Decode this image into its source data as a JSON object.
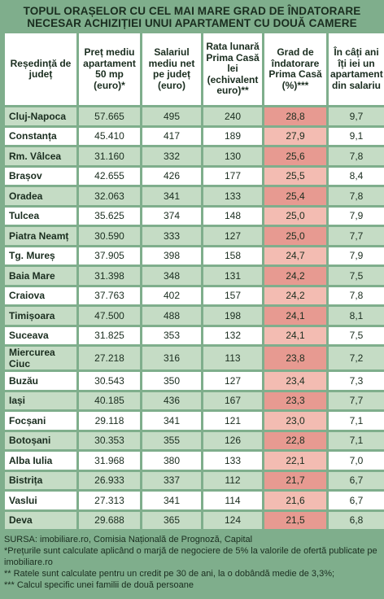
{
  "title_line1": "TOPUL ORAȘELOR CU CEL MAI MARE GRAD DE ÎNDATORARE",
  "title_line2": "NECESAR ACHIZIȚIEI UNUI APARTAMENT CU DOUĂ CAMERE",
  "chart_data": {
    "type": "table",
    "columns": [
      "Reședință de județ",
      "Preț mediu apartament 50 mp (euro)*",
      "Salariul mediu net pe județ (euro)",
      "Rata lunară Prima Casă lei (echivalent euro)**",
      "Grad de îndatorare Prima Casă (%)***",
      "În câți ani îți iei un apartament din salariu"
    ],
    "rows": [
      [
        "Cluj-Napoca",
        "57.665",
        "495",
        "240",
        "28,8",
        "9,7"
      ],
      [
        "Constanța",
        "45.410",
        "417",
        "189",
        "27,9",
        "9,1"
      ],
      [
        "Rm. Vâlcea",
        "31.160",
        "332",
        "130",
        "25,6",
        "7,8"
      ],
      [
        "Brașov",
        "42.655",
        "426",
        "177",
        "25,5",
        "8,4"
      ],
      [
        "Oradea",
        "32.063",
        "341",
        "133",
        "25,4",
        "7,8"
      ],
      [
        "Tulcea",
        "35.625",
        "374",
        "148",
        "25,0",
        "7,9"
      ],
      [
        "Piatra Neamț",
        "30.590",
        "333",
        "127",
        "25,0",
        "7,7"
      ],
      [
        "Tg. Mureș",
        "37.905",
        "398",
        "158",
        "24,7",
        "7,9"
      ],
      [
        "Baia Mare",
        "31.398",
        "348",
        "131",
        "24,2",
        "7,5"
      ],
      [
        "Craiova",
        "37.763",
        "402",
        "157",
        "24,2",
        "7,8"
      ],
      [
        "Timișoara",
        "47.500",
        "488",
        "198",
        "24,1",
        "8,1"
      ],
      [
        "Suceava",
        "31.825",
        "353",
        "132",
        "24,1",
        "7,5"
      ],
      [
        "Miercurea Ciuc",
        "27.218",
        "316",
        "113",
        "23,8",
        "7,2"
      ],
      [
        "Buzău",
        "30.543",
        "350",
        "127",
        "23,4",
        "7,3"
      ],
      [
        "Iași",
        "40.185",
        "436",
        "167",
        "23,3",
        "7,7"
      ],
      [
        "Focșani",
        "29.118",
        "341",
        "121",
        "23,0",
        "7,1"
      ],
      [
        "Botoșani",
        "30.353",
        "355",
        "126",
        "22,8",
        "7,1"
      ],
      [
        "Alba Iulia",
        "31.968",
        "380",
        "133",
        "22,1",
        "7,0"
      ],
      [
        "Bistrița",
        "26.933",
        "337",
        "112",
        "21,7",
        "6,7"
      ],
      [
        "Vaslui",
        "27.313",
        "341",
        "114",
        "21,6",
        "6,7"
      ],
      [
        "Deva",
        "29.688",
        "365",
        "124",
        "21,5",
        "6,8"
      ]
    ]
  },
  "notes": [
    "SURSA: imobiliare.ro, Comisia Națională de Prognoză, Capital",
    "*Prețurile sunt calculate aplicând o marjă de negociere de 5% la valorile de ofertă publicate pe imobiliare.ro",
    "** Ratele sunt calculate pentru un credit pe 30 de ani, la o dobândă medie de 3,3%;",
    "*** Calcul specific unei familii de două persoane"
  ],
  "colors": {
    "background": "#7fae8c",
    "row_alt": "#c5dcc5",
    "grade_light": "#f3bcb2",
    "grade_dark": "#e79a91"
  }
}
